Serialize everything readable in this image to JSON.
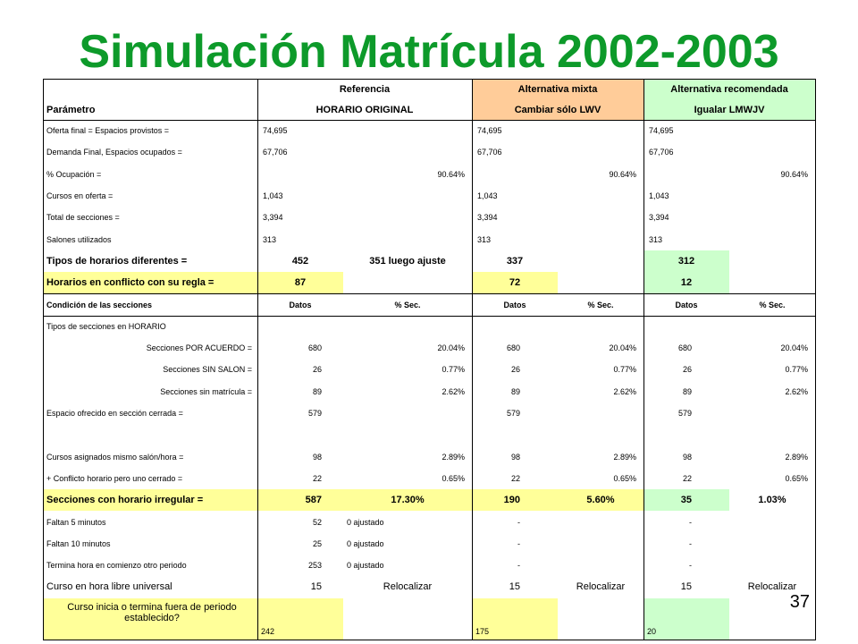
{
  "title": "Simulación Matrícula 2002-2003",
  "page_number": "37",
  "colors": {
    "title": "#0d9a2a",
    "yellow": "#ffff99",
    "green": "#ccffcc",
    "orange": "#ffcc99"
  },
  "header": {
    "row1": [
      "",
      "Referencia",
      "Alternativa mixta",
      "Alternativa recomendada"
    ],
    "row2": [
      "Parámetro",
      "HORARIO ORIGINAL",
      "Cambiar sólo LWV",
      "Igualar LMWJV"
    ]
  },
  "section_header": [
    "Condición de las secciones",
    "Datos",
    "% Sec.",
    "Datos",
    "% Sec.",
    "Datos",
    "% Sec."
  ],
  "rows": [
    [
      "Oferta final = Espacios provistos =",
      "74,695",
      "",
      "74,695",
      "",
      "74,695",
      ""
    ],
    [
      "Demanda Final, Espacios ocupados =",
      "67,706",
      "",
      "67,706",
      "",
      "67,706",
      ""
    ],
    [
      "% Ocupación =",
      "",
      "90.64%",
      "",
      "90.64%",
      "",
      "90.64%"
    ],
    [
      "Cursos en oferta =",
      "1,043",
      "",
      "1,043",
      "",
      "1,043",
      ""
    ],
    [
      "Total de secciones =",
      "3,394",
      "",
      "3,394",
      "",
      "3,394",
      ""
    ],
    [
      "Salones utilizados",
      "313",
      "",
      "313",
      "",
      "313",
      ""
    ],
    [
      "Tipos de horarios diferentes  =",
      "452",
      "351 luego ajuste",
      "337",
      "",
      "312",
      ""
    ],
    [
      "Horarios en conflicto con su regla =",
      "87",
      "",
      "72",
      "",
      "12",
      ""
    ],
    [
      "",
      "",
      "",
      "",
      "",
      "",
      ""
    ],
    [
      "Tipos de secciones en HORARIO",
      "",
      "",
      "",
      "",
      "",
      ""
    ],
    [
      "Secciones POR ACUERDO =",
      "680",
      "20.04%",
      "680",
      "20.04%",
      "680",
      "20.04%"
    ],
    [
      "Secciones SIN SALON =",
      "26",
      "0.77%",
      "26",
      "0.77%",
      "26",
      "0.77%"
    ],
    [
      "Secciones sin matrícula =",
      "89",
      "2.62%",
      "89",
      "2.62%",
      "89",
      "2.62%"
    ],
    [
      "Espacio ofrecido en sección cerrada =",
      "579",
      "",
      "579",
      "",
      "579",
      ""
    ],
    [
      "",
      "",
      "",
      "",
      "",
      "",
      ""
    ],
    [
      "Cursos asignados mismo salón/hora =",
      "98",
      "2.89%",
      "98",
      "2.89%",
      "98",
      "2.89%"
    ],
    [
      "+ Conflicto horario pero uno cerrado =",
      "22",
      "0.65%",
      "22",
      "0.65%",
      "22",
      "0.65%"
    ],
    [
      "Secciones con horario irregular =",
      "587",
      "17.30%",
      "190",
      "5.60%",
      "35",
      "1.03%"
    ],
    [
      "Faltan 5 minutos",
      "52",
      "0 ajustado",
      "-",
      "",
      "-",
      ""
    ],
    [
      "Faltan 10 minutos",
      "25",
      "0 ajustado",
      "-",
      "",
      "-",
      ""
    ],
    [
      "Termina hora en comienzo otro periodo",
      "253",
      "0 ajustado",
      "-",
      "",
      "-",
      ""
    ],
    [
      "Curso en hora libre universal",
      "15",
      "Relocalizar",
      "15",
      "Relocalizar",
      "15",
      "Relocalizar"
    ],
    [
      "Curso inicia o termina fuera de periodo establecido?",
      "242",
      "",
      "175",
      "",
      "20",
      ""
    ]
  ]
}
